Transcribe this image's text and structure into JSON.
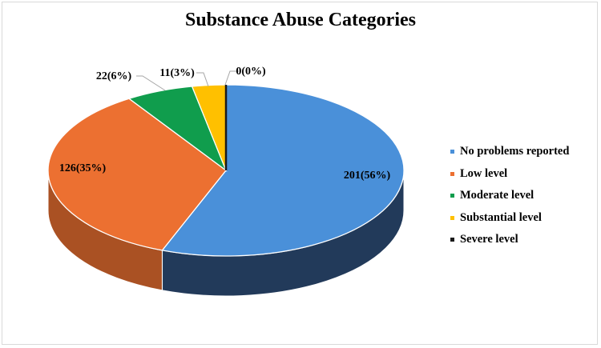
{
  "chart_data": {
    "type": "pie",
    "title": "Substance Abuse Categories",
    "categories": [
      "No problems reported",
      "Low level",
      "Moderate level",
      "Substantial level",
      "Severe level"
    ],
    "values": [
      201,
      126,
      22,
      11,
      0
    ],
    "data_labels": [
      "201(56%)",
      "126(35%)",
      "22(6%)",
      "11(3%)",
      "0(0%)"
    ],
    "colors": [
      "#4a90d9",
      "#ec7031",
      "#109d4d",
      "#ffc000",
      "#1a1a1a"
    ],
    "style": "3d",
    "legend_position": "right"
  }
}
